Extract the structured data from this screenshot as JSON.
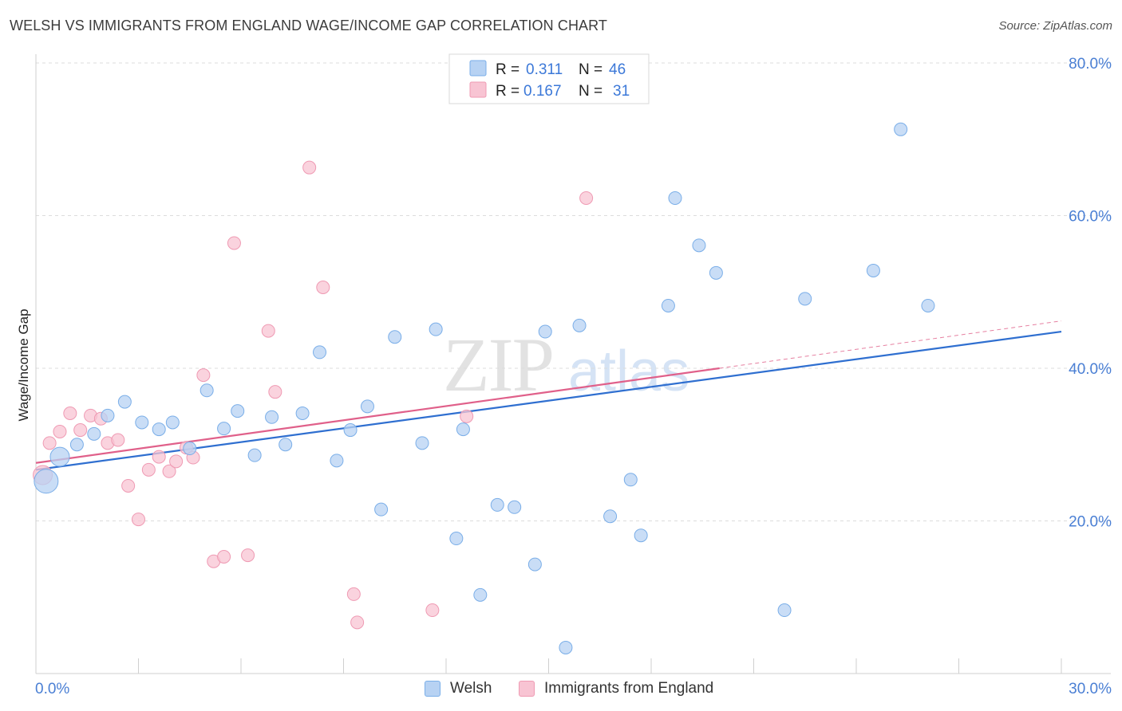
{
  "title": "WELSH VS IMMIGRANTS FROM ENGLAND WAGE/INCOME GAP CORRELATION CHART",
  "source": "Source: ZipAtlas.com",
  "colors": {
    "welsh_fill": "#b7d2f3",
    "welsh_stroke": "#7aaee8",
    "welsh_line": "#2f6fd0",
    "eng_fill": "#f8c4d3",
    "eng_stroke": "#ef9ab3",
    "eng_line": "#e0608a",
    "axis_text": "#4a7fd4"
  },
  "legend": {
    "r_label": "R =",
    "n_label": "N =",
    "rows": [
      {
        "r": "0.311",
        "n": "46"
      },
      {
        "r": "0.167",
        "n": "31"
      }
    ]
  },
  "chart_data": {
    "type": "scatter",
    "title": "WELSH VS IMMIGRANTS FROM ENGLAND WAGE/INCOME GAP CORRELATION CHART",
    "xlabel": "",
    "ylabel": "Wage/Income Gap",
    "xlim": [
      0,
      30
    ],
    "ylim": [
      0,
      80
    ],
    "x_tick_labels": [
      "0.0%",
      "30.0%"
    ],
    "y_ticks": [
      20,
      40,
      60,
      80
    ],
    "y_tick_labels": [
      "20.0%",
      "40.0%",
      "60.0%",
      "80.0%"
    ],
    "watermark": "ZIPatlas",
    "series": [
      {
        "name": "Welsh",
        "r": 0.311,
        "n": 46,
        "trend": {
          "x0": 0,
          "y0": 26.7,
          "x1": 30,
          "y1": 44.8
        },
        "points": [
          {
            "x": 0.3,
            "y": 25.2,
            "s": 3
          },
          {
            "x": 0.7,
            "y": 28.4,
            "s": 2
          },
          {
            "x": 1.2,
            "y": 30.0,
            "s": 1
          },
          {
            "x": 1.7,
            "y": 31.4,
            "s": 1
          },
          {
            "x": 2.1,
            "y": 33.8,
            "s": 1
          },
          {
            "x": 2.6,
            "y": 35.6,
            "s": 1
          },
          {
            "x": 3.1,
            "y": 32.9,
            "s": 1
          },
          {
            "x": 3.6,
            "y": 32.0,
            "s": 1
          },
          {
            "x": 4.0,
            "y": 32.9,
            "s": 1
          },
          {
            "x": 4.5,
            "y": 29.5,
            "s": 1
          },
          {
            "x": 5.0,
            "y": 37.1,
            "s": 1
          },
          {
            "x": 5.5,
            "y": 32.1,
            "s": 1
          },
          {
            "x": 5.9,
            "y": 34.4,
            "s": 1
          },
          {
            "x": 6.4,
            "y": 28.6,
            "s": 1
          },
          {
            "x": 6.9,
            "y": 33.6,
            "s": 1
          },
          {
            "x": 7.3,
            "y": 30.0,
            "s": 1
          },
          {
            "x": 7.8,
            "y": 34.1,
            "s": 1
          },
          {
            "x": 8.3,
            "y": 42.1,
            "s": 1
          },
          {
            "x": 8.8,
            "y": 27.9,
            "s": 1
          },
          {
            "x": 9.2,
            "y": 31.9,
            "s": 1
          },
          {
            "x": 9.7,
            "y": 35.0,
            "s": 1
          },
          {
            "x": 10.1,
            "y": 21.5,
            "s": 1
          },
          {
            "x": 10.5,
            "y": 44.1,
            "s": 1
          },
          {
            "x": 11.3,
            "y": 30.2,
            "s": 1
          },
          {
            "x": 11.7,
            "y": 45.1,
            "s": 1
          },
          {
            "x": 12.3,
            "y": 17.7,
            "s": 1
          },
          {
            "x": 12.5,
            "y": 32.0,
            "s": 1
          },
          {
            "x": 13.0,
            "y": 10.3,
            "s": 1
          },
          {
            "x": 13.5,
            "y": 22.1,
            "s": 1
          },
          {
            "x": 14.0,
            "y": 21.8,
            "s": 1
          },
          {
            "x": 14.6,
            "y": 14.3,
            "s": 1
          },
          {
            "x": 14.9,
            "y": 44.8,
            "s": 1
          },
          {
            "x": 15.5,
            "y": 3.4,
            "s": 1
          },
          {
            "x": 15.9,
            "y": 45.6,
            "s": 1
          },
          {
            "x": 16.8,
            "y": 20.6,
            "s": 1
          },
          {
            "x": 17.4,
            "y": 25.4,
            "s": 1
          },
          {
            "x": 17.7,
            "y": 18.1,
            "s": 1
          },
          {
            "x": 18.5,
            "y": 48.2,
            "s": 1
          },
          {
            "x": 18.7,
            "y": 62.3,
            "s": 1
          },
          {
            "x": 19.4,
            "y": 56.1,
            "s": 1
          },
          {
            "x": 19.9,
            "y": 52.5,
            "s": 1
          },
          {
            "x": 21.9,
            "y": 8.3,
            "s": 1
          },
          {
            "x": 22.5,
            "y": 49.1,
            "s": 1
          },
          {
            "x": 24.5,
            "y": 52.8,
            "s": 1
          },
          {
            "x": 25.3,
            "y": 71.3,
            "s": 1
          },
          {
            "x": 26.1,
            "y": 48.2,
            "s": 1
          }
        ]
      },
      {
        "name": "Immigrants from England",
        "r": 0.167,
        "n": 31,
        "trend": {
          "x0": 0,
          "y0": 27.6,
          "x1": 20,
          "y1": 40.0
        },
        "trend_dashed": {
          "x0": 20,
          "y0": 40.0,
          "x1": 30,
          "y1": 46.2
        },
        "points": [
          {
            "x": 0.2,
            "y": 26.0,
            "s": 2
          },
          {
            "x": 0.4,
            "y": 30.2,
            "s": 1
          },
          {
            "x": 0.7,
            "y": 31.7,
            "s": 1
          },
          {
            "x": 1.0,
            "y": 34.1,
            "s": 1
          },
          {
            "x": 1.3,
            "y": 31.9,
            "s": 1
          },
          {
            "x": 1.6,
            "y": 33.8,
            "s": 1
          },
          {
            "x": 1.9,
            "y": 33.4,
            "s": 1
          },
          {
            "x": 2.1,
            "y": 30.2,
            "s": 1
          },
          {
            "x": 2.4,
            "y": 30.6,
            "s": 1
          },
          {
            "x": 2.7,
            "y": 24.6,
            "s": 1
          },
          {
            "x": 3.0,
            "y": 20.2,
            "s": 1
          },
          {
            "x": 3.3,
            "y": 26.7,
            "s": 1
          },
          {
            "x": 3.6,
            "y": 28.4,
            "s": 1
          },
          {
            "x": 3.9,
            "y": 26.5,
            "s": 1
          },
          {
            "x": 4.1,
            "y": 27.8,
            "s": 1
          },
          {
            "x": 4.4,
            "y": 29.6,
            "s": 1
          },
          {
            "x": 4.6,
            "y": 28.3,
            "s": 1
          },
          {
            "x": 4.9,
            "y": 39.1,
            "s": 1
          },
          {
            "x": 5.2,
            "y": 14.7,
            "s": 1
          },
          {
            "x": 5.5,
            "y": 15.3,
            "s": 1
          },
          {
            "x": 5.8,
            "y": 56.4,
            "s": 1
          },
          {
            "x": 6.2,
            "y": 15.5,
            "s": 1
          },
          {
            "x": 6.8,
            "y": 44.9,
            "s": 1
          },
          {
            "x": 7.0,
            "y": 36.9,
            "s": 1
          },
          {
            "x": 8.0,
            "y": 66.3,
            "s": 1
          },
          {
            "x": 8.4,
            "y": 50.6,
            "s": 1
          },
          {
            "x": 9.3,
            "y": 10.4,
            "s": 1
          },
          {
            "x": 9.4,
            "y": 6.7,
            "s": 1
          },
          {
            "x": 11.6,
            "y": 8.3,
            "s": 1
          },
          {
            "x": 12.6,
            "y": 33.7,
            "s": 1
          },
          {
            "x": 16.1,
            "y": 62.3,
            "s": 1
          }
        ]
      }
    ],
    "legend_position": "top-center"
  },
  "bottom_legend": [
    "Welsh",
    "Immigrants from England"
  ]
}
